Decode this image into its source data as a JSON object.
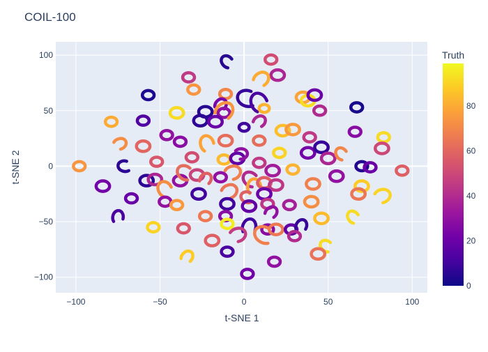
{
  "chart_data": {
    "type": "scatter",
    "title": "COIL-100",
    "xlabel": "t-SNE 1",
    "ylabel": "t-SNE 2",
    "xlim": [
      -112,
      109
    ],
    "ylim": [
      -114,
      112
    ],
    "xticks": [
      -100,
      -50,
      0,
      50,
      100
    ],
    "yticks": [
      -100,
      -50,
      0,
      50,
      100
    ],
    "grid": true,
    "colorbar": {
      "title": "Truth",
      "range": [
        0,
        99
      ],
      "ticks": [
        0,
        20,
        40,
        60,
        80
      ],
      "colorscale": "plasma",
      "placement": "right"
    },
    "clusters": [
      {
        "x": 16,
        "y": 96,
        "truth": 52,
        "shape": "ring",
        "r": 3.5
      },
      {
        "x": -10,
        "y": 94,
        "truth": 5,
        "shape": "arc",
        "r": 4
      },
      {
        "x": 20,
        "y": 82,
        "truth": 38,
        "shape": "ring",
        "r": 4
      },
      {
        "x": 10,
        "y": 78,
        "truth": 80,
        "shape": "arc",
        "r": 5
      },
      {
        "x": -33,
        "y": 80,
        "truth": 45,
        "shape": "ring",
        "r": 3.5
      },
      {
        "x": -30,
        "y": 69,
        "truth": 74,
        "shape": "ring",
        "r": 3.5
      },
      {
        "x": -57,
        "y": 64,
        "truth": 3,
        "shape": "ring",
        "r": 3.5
      },
      {
        "x": -11,
        "y": 65,
        "truth": 70,
        "shape": "ring",
        "r": 3.5
      },
      {
        "x": 2,
        "y": 61,
        "truth": 8,
        "shape": "arc",
        "r": 6
      },
      {
        "x": 9,
        "y": 57,
        "truth": 12,
        "shape": "arc",
        "r": 6
      },
      {
        "x": 12,
        "y": 52,
        "truth": 82,
        "shape": "ring",
        "r": 3
      },
      {
        "x": 35,
        "y": 62,
        "truth": 78,
        "shape": "ring",
        "r": 4
      },
      {
        "x": 38,
        "y": 59,
        "truth": 92,
        "shape": "ring",
        "r": 4
      },
      {
        "x": 42,
        "y": 64,
        "truth": 20,
        "shape": "ring",
        "r": 4
      },
      {
        "x": 45,
        "y": 50,
        "truth": 40,
        "shape": "ring",
        "r": 3.5
      },
      {
        "x": 67,
        "y": 53,
        "truth": 2,
        "shape": "ring",
        "r": 3.5
      },
      {
        "x": -23,
        "y": 49,
        "truth": 5,
        "shape": "ring",
        "r": 4
      },
      {
        "x": -40,
        "y": 48,
        "truth": 92,
        "shape": "ring",
        "r": 4
      },
      {
        "x": -14,
        "y": 55,
        "truth": 24,
        "shape": "arc",
        "r": 4
      },
      {
        "x": -12,
        "y": 48,
        "truth": 30,
        "shape": "ring",
        "r": 3.5
      },
      {
        "x": -26,
        "y": 41,
        "truth": 6,
        "shape": "ring",
        "r": 4
      },
      {
        "x": -17,
        "y": 40,
        "truth": 20,
        "shape": "ring",
        "r": 4
      },
      {
        "x": -12,
        "y": 49,
        "truth": 74,
        "shape": "arc",
        "r": 6
      },
      {
        "x": -60,
        "y": 41,
        "truth": 14,
        "shape": "ring",
        "r": 3.5
      },
      {
        "x": -79,
        "y": 40,
        "truth": 80,
        "shape": "ring",
        "r": 3.5
      },
      {
        "x": 0,
        "y": 35,
        "truth": 10,
        "shape": "ring",
        "r": 3
      },
      {
        "x": 9,
        "y": 40,
        "truth": 38,
        "shape": "arc",
        "r": 4
      },
      {
        "x": 23,
        "y": 32,
        "truth": 85,
        "shape": "ring",
        "r": 4
      },
      {
        "x": 29,
        "y": 33,
        "truth": 75,
        "shape": "ring",
        "r": 4
      },
      {
        "x": 39,
        "y": 26,
        "truth": 45,
        "shape": "ring",
        "r": 3.5
      },
      {
        "x": 66,
        "y": 31,
        "truth": 28,
        "shape": "ring",
        "r": 3.5
      },
      {
        "x": 83,
        "y": 26,
        "truth": 92,
        "shape": "ring",
        "r": 3.5
      },
      {
        "x": -46,
        "y": 28,
        "truth": 30,
        "shape": "ring",
        "r": 3.5
      },
      {
        "x": -38,
        "y": 22,
        "truth": 28,
        "shape": "ring",
        "r": 3.5
      },
      {
        "x": -74,
        "y": 20,
        "truth": 72,
        "shape": "arc",
        "r": 4
      },
      {
        "x": -60,
        "y": 18,
        "truth": 60,
        "shape": "ring",
        "r": 4
      },
      {
        "x": -22,
        "y": 20,
        "truth": 78,
        "shape": "arc",
        "r": 5
      },
      {
        "x": -11,
        "y": 23,
        "truth": 62,
        "shape": "ring",
        "r": 4
      },
      {
        "x": 9,
        "y": 23,
        "truth": 62,
        "shape": "ring",
        "r": 3.5
      },
      {
        "x": -31,
        "y": 8,
        "truth": 52,
        "shape": "ring",
        "r": 3.5
      },
      {
        "x": -12,
        "y": 6,
        "truth": 84,
        "shape": "ring",
        "r": 3.5
      },
      {
        "x": -4,
        "y": 7,
        "truth": 18,
        "shape": "ring",
        "r": 4
      },
      {
        "x": -2,
        "y": 11,
        "truth": 30,
        "shape": "arc",
        "r": 4
      },
      {
        "x": 21,
        "y": 12,
        "truth": 90,
        "shape": "ring",
        "r": 3.5
      },
      {
        "x": 38,
        "y": 12,
        "truth": 22,
        "shape": "ring",
        "r": 4
      },
      {
        "x": 46,
        "y": 17,
        "truth": 8,
        "shape": "ring",
        "r": 4
      },
      {
        "x": 50,
        "y": 7,
        "truth": 38,
        "shape": "ring",
        "r": 4
      },
      {
        "x": 58,
        "y": 11,
        "truth": 70,
        "shape": "arc",
        "r": 4
      },
      {
        "x": 82,
        "y": 16,
        "truth": 50,
        "shape": "ring",
        "r": 4
      },
      {
        "x": -98,
        "y": 0,
        "truth": 74,
        "shape": "ring",
        "r": 3.5
      },
      {
        "x": -71,
        "y": 0,
        "truth": 6,
        "shape": "arc",
        "r": 4
      },
      {
        "x": -52,
        "y": 4,
        "truth": 55,
        "shape": "ring",
        "r": 3.5
      },
      {
        "x": 9,
        "y": 3,
        "truth": 45,
        "shape": "ring",
        "r": 3.5
      },
      {
        "x": 29,
        "y": -3,
        "truth": 82,
        "shape": "ring",
        "r": 3.5
      },
      {
        "x": 70,
        "y": 0,
        "truth": 4,
        "shape": "ring",
        "r": 3.5
      },
      {
        "x": 75,
        "y": -1,
        "truth": 20,
        "shape": "ring",
        "r": 3.5
      },
      {
        "x": 94,
        "y": -4,
        "truth": 58,
        "shape": "ring",
        "r": 3.5
      },
      {
        "x": -7,
        "y": -6,
        "truth": 68,
        "shape": "arc",
        "r": 5
      },
      {
        "x": 17,
        "y": -4,
        "truth": 35,
        "shape": "ring",
        "r": 4
      },
      {
        "x": -58,
        "y": -13,
        "truth": 6,
        "shape": "ring",
        "r": 4
      },
      {
        "x": -53,
        "y": -12,
        "truth": 38,
        "shape": "ring",
        "r": 4
      },
      {
        "x": -38,
        "y": -13,
        "truth": 30,
        "shape": "ring",
        "r": 4
      },
      {
        "x": -35,
        "y": -6,
        "truth": 62,
        "shape": "arc",
        "r": 5
      },
      {
        "x": -28,
        "y": -8,
        "truth": 48,
        "shape": "ring",
        "r": 4
      },
      {
        "x": -23,
        "y": -12,
        "truth": 58,
        "shape": "arc",
        "r": 4
      },
      {
        "x": -14,
        "y": -10,
        "truth": 30,
        "shape": "ring",
        "r": 3.5
      },
      {
        "x": 4,
        "y": -12,
        "truth": 40,
        "shape": "arc",
        "r": 5
      },
      {
        "x": 6,
        "y": -19,
        "truth": 78,
        "shape": "arc",
        "r": 5
      },
      {
        "x": 12,
        "y": -15,
        "truth": 58,
        "shape": "ring",
        "r": 4
      },
      {
        "x": 19,
        "y": -17,
        "truth": 44,
        "shape": "ring",
        "r": 4
      },
      {
        "x": 41,
        "y": -16,
        "truth": 68,
        "shape": "ring",
        "r": 4
      },
      {
        "x": 55,
        "y": -9,
        "truth": 30,
        "shape": "ring",
        "r": 4
      },
      {
        "x": 70,
        "y": -18,
        "truth": 88,
        "shape": "ring",
        "r": 4
      },
      {
        "x": -84,
        "y": -18,
        "truth": 22,
        "shape": "ring",
        "r": 4
      },
      {
        "x": -47,
        "y": -21,
        "truth": 72,
        "shape": "arc",
        "r": 5
      },
      {
        "x": -27,
        "y": -25,
        "truth": 10,
        "shape": "ring",
        "r": 4
      },
      {
        "x": -9,
        "y": -23,
        "truth": 65,
        "shape": "arc",
        "r": 5
      },
      {
        "x": 2,
        "y": -28,
        "truth": 58,
        "shape": "arc",
        "r": 4
      },
      {
        "x": 12,
        "y": -25,
        "truth": 20,
        "shape": "ring",
        "r": 4
      },
      {
        "x": 68,
        "y": -25,
        "truth": 65,
        "shape": "ring",
        "r": 4
      },
      {
        "x": 82,
        "y": -27,
        "truth": 90,
        "shape": "arc",
        "r": 5
      },
      {
        "x": -67,
        "y": -29,
        "truth": 20,
        "shape": "ring",
        "r": 3.5
      },
      {
        "x": -47,
        "y": -32,
        "truth": 30,
        "shape": "ring",
        "r": 3.5
      },
      {
        "x": -40,
        "y": -35,
        "truth": 75,
        "shape": "ring",
        "r": 3.5
      },
      {
        "x": -10,
        "y": -34,
        "truth": 10,
        "shape": "ring",
        "r": 4
      },
      {
        "x": 3,
        "y": -36,
        "truth": 18,
        "shape": "ring",
        "r": 4
      },
      {
        "x": 14,
        "y": -34,
        "truth": 44,
        "shape": "ring",
        "r": 3.5
      },
      {
        "x": 27,
        "y": -35,
        "truth": 36,
        "shape": "ring",
        "r": 3.5
      },
      {
        "x": 40,
        "y": -32,
        "truth": 72,
        "shape": "ring",
        "r": 4
      },
      {
        "x": -23,
        "y": -45,
        "truth": 66,
        "shape": "ring",
        "r": 3.5
      },
      {
        "x": -11,
        "y": -45,
        "truth": 28,
        "shape": "ring",
        "r": 3.5
      },
      {
        "x": 16,
        "y": -42,
        "truth": 30,
        "shape": "arc",
        "r": 4
      },
      {
        "x": 46,
        "y": -47,
        "truth": 84,
        "shape": "ring",
        "r": 4
      },
      {
        "x": 65,
        "y": -46,
        "truth": 92,
        "shape": "arc",
        "r": 4
      },
      {
        "x": -75,
        "y": -46,
        "truth": 12,
        "shape": "arc",
        "r": 4
      },
      {
        "x": -54,
        "y": -55,
        "truth": 90,
        "shape": "ring",
        "r": 3.5
      },
      {
        "x": -36,
        "y": -56,
        "truth": 55,
        "shape": "ring",
        "r": 3.5
      },
      {
        "x": -10,
        "y": -52,
        "truth": 96,
        "shape": "ring",
        "r": 3.5
      },
      {
        "x": 3,
        "y": -55,
        "truth": 10,
        "shape": "arc",
        "r": 5
      },
      {
        "x": 14,
        "y": -57,
        "truth": 28,
        "shape": "ring",
        "r": 3.5
      },
      {
        "x": 19,
        "y": -57,
        "truth": 66,
        "shape": "ring",
        "r": 4
      },
      {
        "x": 28,
        "y": -57,
        "truth": 18,
        "shape": "ring",
        "r": 3.5
      },
      {
        "x": 34,
        "y": -54,
        "truth": 8,
        "shape": "arc",
        "r": 4
      },
      {
        "x": -4,
        "y": -62,
        "truth": 46,
        "shape": "arc",
        "r": 5
      },
      {
        "x": 12,
        "y": -62,
        "truth": 68,
        "shape": "arc",
        "r": 6
      },
      {
        "x": 30,
        "y": -63,
        "truth": 40,
        "shape": "ring",
        "r": 3.5
      },
      {
        "x": -19,
        "y": -67,
        "truth": 58,
        "shape": "ring",
        "r": 4
      },
      {
        "x": -10,
        "y": -77,
        "truth": 12,
        "shape": "ring",
        "r": 3.5
      },
      {
        "x": 49,
        "y": -72,
        "truth": 92,
        "shape": "arc",
        "r": 4
      },
      {
        "x": 44,
        "y": -79,
        "truth": 64,
        "shape": "ring",
        "r": 4
      },
      {
        "x": -34,
        "y": -82,
        "truth": 88,
        "shape": "arc",
        "r": 4
      },
      {
        "x": 18,
        "y": -86,
        "truth": 30,
        "shape": "ring",
        "r": 3.5
      },
      {
        "x": 2,
        "y": -97,
        "truth": 22,
        "shape": "ring",
        "r": 3.5
      }
    ]
  }
}
